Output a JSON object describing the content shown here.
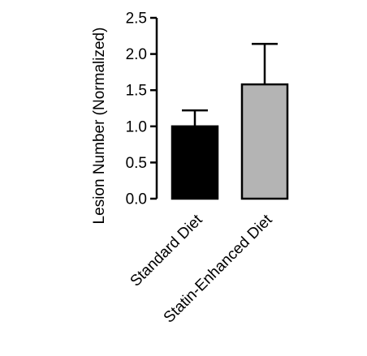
{
  "chart_data": {
    "type": "bar",
    "title": "",
    "xlabel": "",
    "ylabel": "Lesion Number (Normalized)",
    "categories": [
      "Standard Diet",
      "Statin-Enhanced Diet"
    ],
    "values": [
      1.0,
      1.58
    ],
    "error_upper": [
      0.22,
      0.56
    ],
    "bar_colors": [
      "#000000",
      "#b4b4b4"
    ],
    "ylim": [
      0,
      2.5
    ],
    "yticks": [
      "0.0",
      "0.5",
      "1.0",
      "1.5",
      "2.0",
      "2.5"
    ],
    "grid": false,
    "legend": "none"
  }
}
